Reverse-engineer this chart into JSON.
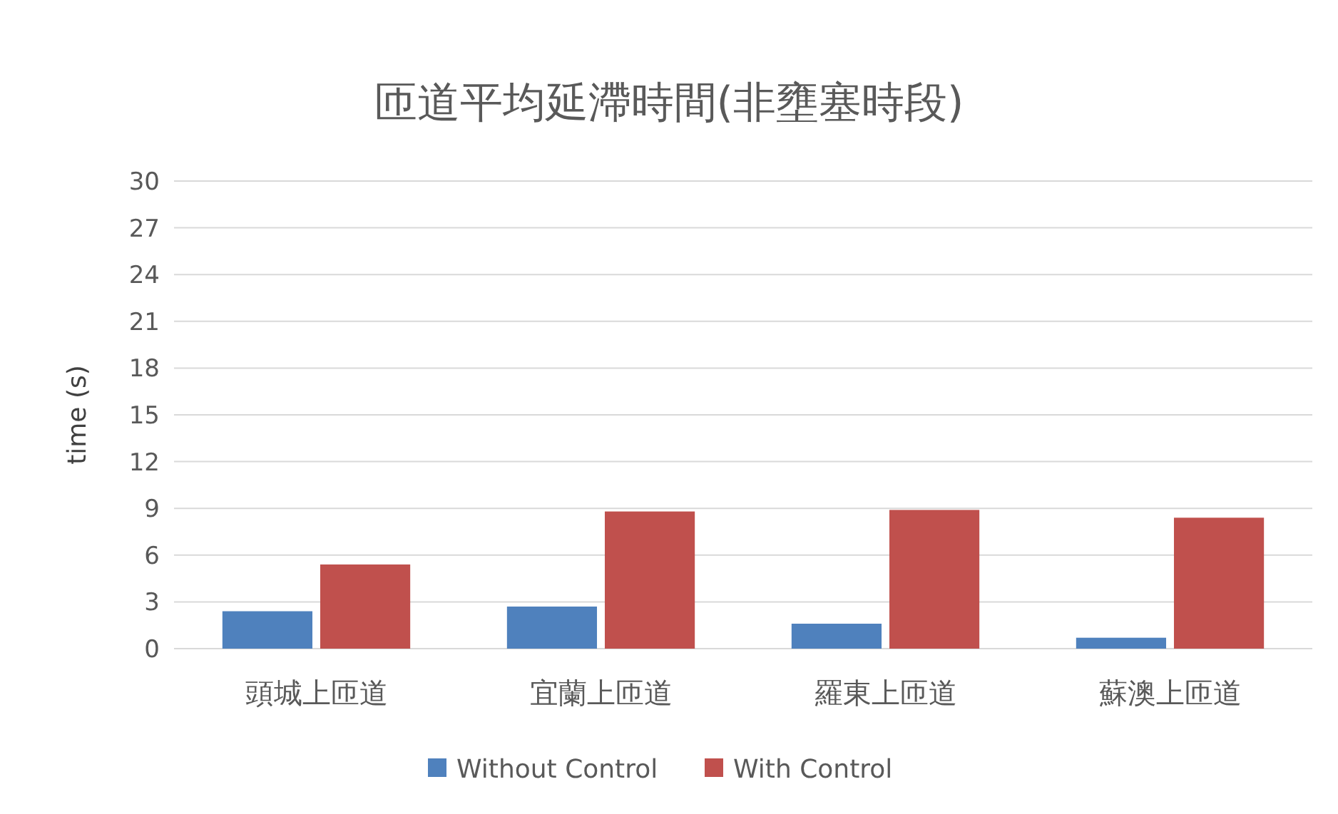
{
  "chart_data": {
    "type": "bar",
    "title": "匝道平均延滯時間(非壅塞時段)",
    "ylabel": "time (s)",
    "categories": [
      "頭城上匝道",
      "宜蘭上匝道",
      "羅東上匝道",
      "蘇澳上匝道"
    ],
    "series": [
      {
        "name": "Without Control",
        "color": "#4f81bd",
        "values": [
          2.4,
          2.7,
          1.6,
          0.7
        ]
      },
      {
        "name": "With Control",
        "color": "#c0504d",
        "values": [
          5.4,
          8.8,
          8.9,
          8.4
        ]
      }
    ],
    "ylim": [
      0,
      30
    ],
    "yticks": [
      0,
      3,
      6,
      9,
      12,
      15,
      18,
      21,
      24,
      27,
      30
    ],
    "grid": "y",
    "legend": "bottom"
  }
}
